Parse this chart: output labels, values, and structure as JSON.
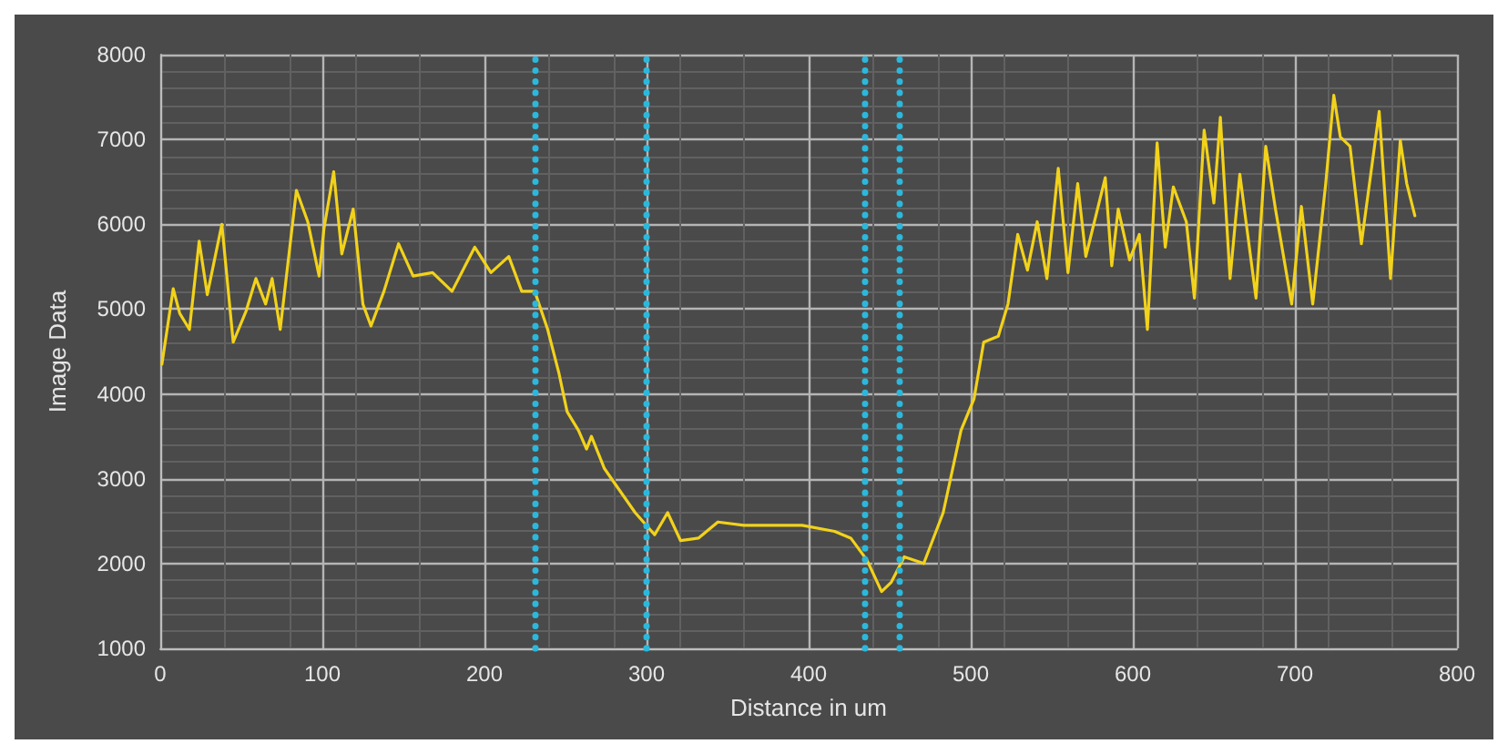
{
  "chart_data": {
    "type": "line",
    "xlabel": "Distance in um",
    "ylabel": "Image Data",
    "xlim": [
      0,
      800
    ],
    "xticks": [
      0,
      100,
      200,
      300,
      400,
      500,
      600,
      700,
      800
    ],
    "ylim": [
      1000,
      8000
    ],
    "yticks": [
      1000,
      2000,
      3000,
      4000,
      5000,
      6000,
      7000,
      8000
    ],
    "grid": true,
    "marker": "none",
    "line_style": "solid",
    "series": [
      {
        "color": "#f2d21b",
        "x": [
          1,
          8,
          12,
          18,
          24,
          29,
          38,
          45,
          53,
          59,
          65,
          69,
          74,
          84,
          91,
          98,
          101,
          107,
          112,
          119,
          125,
          130,
          138,
          147,
          156,
          168,
          180,
          194,
          204,
          215,
          223,
          231,
          239,
          246,
          251,
          258,
          263,
          266,
          274,
          282,
          293,
          305,
          313,
          321,
          332,
          344,
          360,
          376,
          396,
          416,
          426,
          436,
          445,
          451,
          459,
          471,
          483,
          494,
          502,
          508,
          517,
          523,
          529,
          535,
          541,
          547,
          554,
          560,
          566,
          571,
          583,
          587,
          591,
          598,
          604,
          609,
          615,
          620,
          625,
          633,
          638,
          644,
          650,
          654,
          660,
          666,
          676,
          682,
          688,
          698,
          704,
          711,
          719,
          724,
          728,
          734,
          741,
          747,
          752,
          759,
          765,
          769,
          774
        ],
        "values": [
          4350,
          5240,
          4950,
          4760,
          5800,
          5170,
          6000,
          4610,
          4980,
          5360,
          5060,
          5360,
          4760,
          6400,
          6030,
          5390,
          5950,
          6620,
          5650,
          6180,
          5060,
          4800,
          5210,
          5770,
          5390,
          5430,
          5210,
          5730,
          5430,
          5620,
          5210,
          5210,
          4760,
          4240,
          3790,
          3570,
          3350,
          3500,
          3120,
          2900,
          2600,
          2340,
          2600,
          2270,
          2300,
          2490,
          2450,
          2450,
          2450,
          2380,
          2300,
          2040,
          1670,
          1780,
          2080,
          2000,
          2600,
          3570,
          3940,
          4610,
          4680,
          5060,
          5880,
          5460,
          6030,
          5360,
          6660,
          5430,
          6480,
          5620,
          6550,
          5510,
          6180,
          5580,
          5880,
          4760,
          6960,
          5730,
          6440,
          6030,
          5130,
          7110,
          6250,
          7260,
          5360,
          6590,
          5130,
          6920,
          6180,
          5060,
          6210,
          5060,
          6480,
          7520,
          7030,
          6920,
          5770,
          6620,
          7330,
          5360,
          6990,
          6480,
          6100
        ]
      }
    ],
    "ref_lines": [
      {
        "axis": "x",
        "value": 231,
        "color": "#2bb8dc",
        "line_style": "dotted"
      },
      {
        "axis": "x",
        "value": 300,
        "color": "#2bb8dc",
        "line_style": "dotted"
      },
      {
        "axis": "x",
        "value": 434,
        "color": "#2bb8dc",
        "line_style": "dotted"
      },
      {
        "axis": "x",
        "value": 456,
        "color": "#2bb8dc",
        "line_style": "dotted"
      }
    ]
  }
}
